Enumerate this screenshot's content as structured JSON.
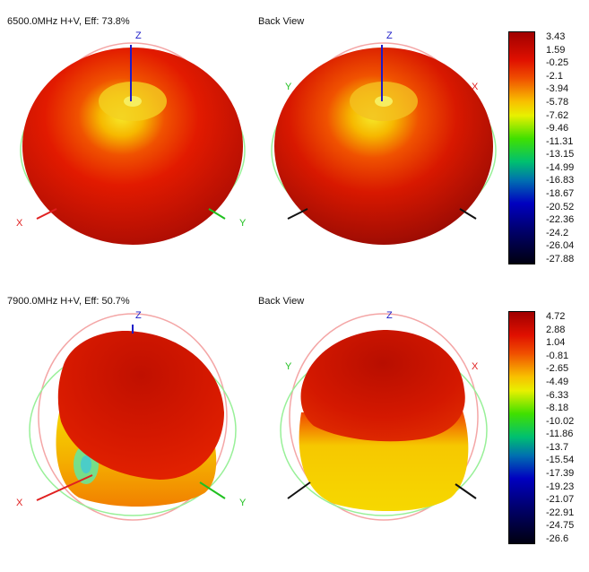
{
  "plots": [
    {
      "title": "6500.0MHz H+V, Eff: 73.8%",
      "back_title": "Back View",
      "axes": {
        "x": "X",
        "y": "Y",
        "z": "Z"
      },
      "colorbar_ticks": [
        "3.43",
        "1.59",
        "-0.25",
        "-2.1",
        "-3.94",
        "-5.78",
        "-7.62",
        "-9.46",
        "-11.31",
        "-13.15",
        "-14.99",
        "-16.83",
        "-18.67",
        "-20.52",
        "-22.36",
        "-24.2",
        "-26.04",
        "-27.88"
      ]
    },
    {
      "title": "7900.0MHz H+V, Eff: 50.7%",
      "back_title": "Back View",
      "axes": {
        "x": "X",
        "y": "Y",
        "z": "Z"
      },
      "colorbar_ticks": [
        "4.72",
        "2.88",
        "1.04",
        "-0.81",
        "-2.65",
        "-4.49",
        "-6.33",
        "-8.18",
        "-10.02",
        "-11.86",
        "-13.7",
        "-15.54",
        "-17.39",
        "-19.23",
        "-21.07",
        "-22.91",
        "-24.75",
        "-26.6"
      ]
    }
  ],
  "chart_data": [
    {
      "type": "heatmap",
      "title": "6500.0MHz H+V, Eff: 73.8%",
      "views": [
        "front",
        "Back View"
      ],
      "frequency_mhz": 6500.0,
      "polarization": "H+V",
      "efficiency_percent": 73.8,
      "colorbar_range": [
        -27.88,
        3.43
      ],
      "colorbar_ticks": [
        3.43,
        1.59,
        -0.25,
        -2.1,
        -3.94,
        -5.78,
        -7.62,
        -9.46,
        -11.31,
        -13.15,
        -14.99,
        -16.83,
        -18.67,
        -20.52,
        -22.36,
        -24.2,
        -26.04,
        -27.88
      ]
    },
    {
      "type": "heatmap",
      "title": "7900.0MHz H+V, Eff: 50.7%",
      "views": [
        "front",
        "Back View"
      ],
      "frequency_mhz": 7900.0,
      "polarization": "H+V",
      "efficiency_percent": 50.7,
      "colorbar_range": [
        -26.6,
        4.72
      ],
      "colorbar_ticks": [
        4.72,
        2.88,
        1.04,
        -0.81,
        -2.65,
        -4.49,
        -6.33,
        -8.18,
        -10.02,
        -11.86,
        -13.7,
        -15.54,
        -17.39,
        -19.23,
        -21.07,
        -22.91,
        -24.75,
        -26.6
      ]
    }
  ],
  "colors": {
    "red": "#e01800",
    "dark_red": "#9e0a04",
    "yellow": "#f2e21a",
    "orange": "#f47a00",
    "green_light": "#98f098",
    "pink_light": "#f4a6a6",
    "axis_z": "#1c1cc8",
    "axis_x_front": "#e02020",
    "axis_y_front": "#20c020",
    "axis_back": "#111111"
  }
}
